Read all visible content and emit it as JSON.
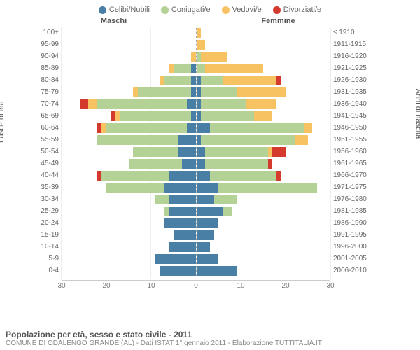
{
  "legend": [
    {
      "label": "Celibi/Nubili",
      "color": "#4a7fa5"
    },
    {
      "label": "Coniugati/e",
      "color": "#b4d296"
    },
    {
      "label": "Vedovi/e",
      "color": "#f7c262"
    },
    {
      "label": "Divorziati/e",
      "color": "#d53a2f"
    }
  ],
  "header_left": "Maschi",
  "header_right": "Femmine",
  "y_left_label": "Fasce di età",
  "y_right_label": "Anni di nascita",
  "x_max": 30,
  "x_ticks": [
    0,
    10,
    20,
    30
  ],
  "colors": {
    "celibi": "#4a7fa5",
    "coniugati": "#b4d296",
    "vedovi": "#f7c262",
    "divorziati": "#d53a2f",
    "grid": "#eeeeee",
    "axis": "#cccccc"
  },
  "rows": [
    {
      "age": "100+",
      "year": "≤ 1910",
      "m": [
        0,
        0,
        0,
        0
      ],
      "f": [
        0,
        0,
        1,
        0
      ]
    },
    {
      "age": "95-99",
      "year": "1911-1915",
      "m": [
        0,
        0,
        0,
        0
      ],
      "f": [
        0,
        0,
        2,
        0
      ]
    },
    {
      "age": "90-94",
      "year": "1916-1920",
      "m": [
        0,
        0,
        1,
        0
      ],
      "f": [
        0,
        1,
        6,
        0
      ]
    },
    {
      "age": "85-89",
      "year": "1921-1925",
      "m": [
        1,
        4,
        1,
        0
      ],
      "f": [
        0,
        2,
        13,
        0
      ]
    },
    {
      "age": "80-84",
      "year": "1926-1930",
      "m": [
        1,
        6,
        1,
        0
      ],
      "f": [
        1,
        5,
        12,
        1
      ]
    },
    {
      "age": "75-79",
      "year": "1931-1935",
      "m": [
        1,
        12,
        1,
        0
      ],
      "f": [
        1,
        8,
        11,
        0
      ]
    },
    {
      "age": "70-74",
      "year": "1936-1940",
      "m": [
        2,
        20,
        2,
        2
      ],
      "f": [
        1,
        10,
        7,
        0
      ]
    },
    {
      "age": "65-69",
      "year": "1941-1945",
      "m": [
        1,
        16,
        1,
        1
      ],
      "f": [
        1,
        12,
        4,
        0
      ]
    },
    {
      "age": "60-64",
      "year": "1946-1950",
      "m": [
        2,
        18,
        1,
        1
      ],
      "f": [
        3,
        21,
        2,
        0
      ]
    },
    {
      "age": "55-59",
      "year": "1951-1955",
      "m": [
        4,
        18,
        0,
        0
      ],
      "f": [
        1,
        21,
        3,
        0
      ]
    },
    {
      "age": "50-54",
      "year": "1956-1960",
      "m": [
        4,
        10,
        0,
        0
      ],
      "f": [
        2,
        14,
        1,
        3
      ]
    },
    {
      "age": "45-49",
      "year": "1961-1965",
      "m": [
        3,
        12,
        0,
        0
      ],
      "f": [
        2,
        14,
        0,
        1
      ]
    },
    {
      "age": "40-44",
      "year": "1966-1970",
      "m": [
        6,
        15,
        0,
        1
      ],
      "f": [
        3,
        15,
        0,
        1
      ]
    },
    {
      "age": "35-39",
      "year": "1971-1975",
      "m": [
        7,
        13,
        0,
        0
      ],
      "f": [
        5,
        22,
        0,
        0
      ]
    },
    {
      "age": "30-34",
      "year": "1976-1980",
      "m": [
        6,
        3,
        0,
        0
      ],
      "f": [
        4,
        5,
        0,
        0
      ]
    },
    {
      "age": "25-29",
      "year": "1981-1985",
      "m": [
        6,
        1,
        0,
        0
      ],
      "f": [
        6,
        2,
        0,
        0
      ]
    },
    {
      "age": "20-24",
      "year": "1986-1990",
      "m": [
        7,
        0,
        0,
        0
      ],
      "f": [
        5,
        0,
        0,
        0
      ]
    },
    {
      "age": "15-19",
      "year": "1991-1995",
      "m": [
        5,
        0,
        0,
        0
      ],
      "f": [
        4,
        0,
        0,
        0
      ]
    },
    {
      "age": "10-14",
      "year": "1996-2000",
      "m": [
        6,
        0,
        0,
        0
      ],
      "f": [
        3,
        0,
        0,
        0
      ]
    },
    {
      "age": "5-9",
      "year": "2001-2005",
      "m": [
        9,
        0,
        0,
        0
      ],
      "f": [
        5,
        0,
        0,
        0
      ]
    },
    {
      "age": "0-4",
      "year": "2006-2010",
      "m": [
        8,
        0,
        0,
        0
      ],
      "f": [
        9,
        0,
        0,
        0
      ]
    }
  ],
  "footer": {
    "title": "Popolazione per età, sesso e stato civile - 2011",
    "sub": "COMUNE DI ODALENGO GRANDE (AL) - Dati ISTAT 1° gennaio 2011 - Elaborazione TUTTITALIA.IT"
  }
}
